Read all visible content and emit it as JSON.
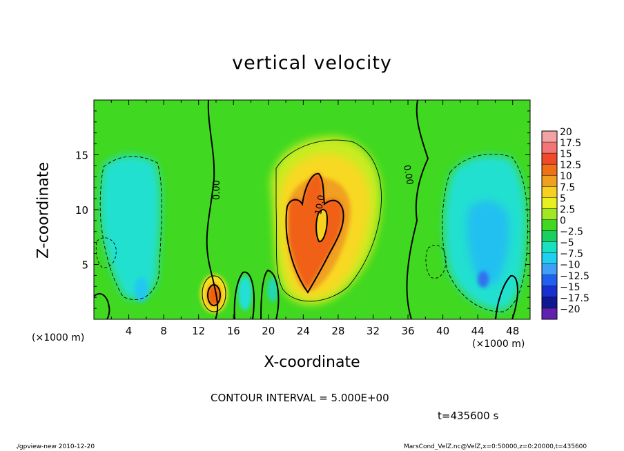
{
  "chart_data": {
    "type": "heatmap",
    "title": "vertical velocity",
    "xlabel": "X-coordinate",
    "ylabel": "Z-coordinate",
    "x_unit_label": "(×1000 m)",
    "x_ticks": [
      4,
      8,
      12,
      16,
      20,
      24,
      28,
      32,
      36,
      40,
      44,
      48
    ],
    "y_ticks": [
      5,
      10,
      15
    ],
    "xlim": [
      0,
      50
    ],
    "ylim": [
      0,
      20
    ],
    "colorbar": {
      "labels": [
        "20",
        "17.5",
        "15",
        "12.5",
        "10",
        "7.5",
        "5",
        "2.5",
        "0",
        "−2.5",
        "−5",
        "−7.5",
        "−10",
        "−12.5",
        "−15",
        "−17.5",
        "−20"
      ],
      "colors": [
        "#f4a3a3",
        "#f47575",
        "#f04a2a",
        "#f07018",
        "#f0a020",
        "#f8d020",
        "#e8f020",
        "#a0e820",
        "#40d820",
        "#18d060",
        "#18e0c0",
        "#20d0f0",
        "#40a0f8",
        "#2060f0",
        "#1830d0",
        "#101890",
        "#6020b0"
      ]
    },
    "contour_labels": [
      "0.00",
      "0.00",
      "10.0"
    ],
    "contour_interval_text": "CONTOUR INTERVAL = 5.000E+00",
    "time_text": "t=435600 s"
  },
  "footer": {
    "left": "./gpview-new  2010-12-20",
    "right": "MarsCond_VelZ.nc@VelZ,x=0:50000,z=0:20000,t=435600"
  }
}
